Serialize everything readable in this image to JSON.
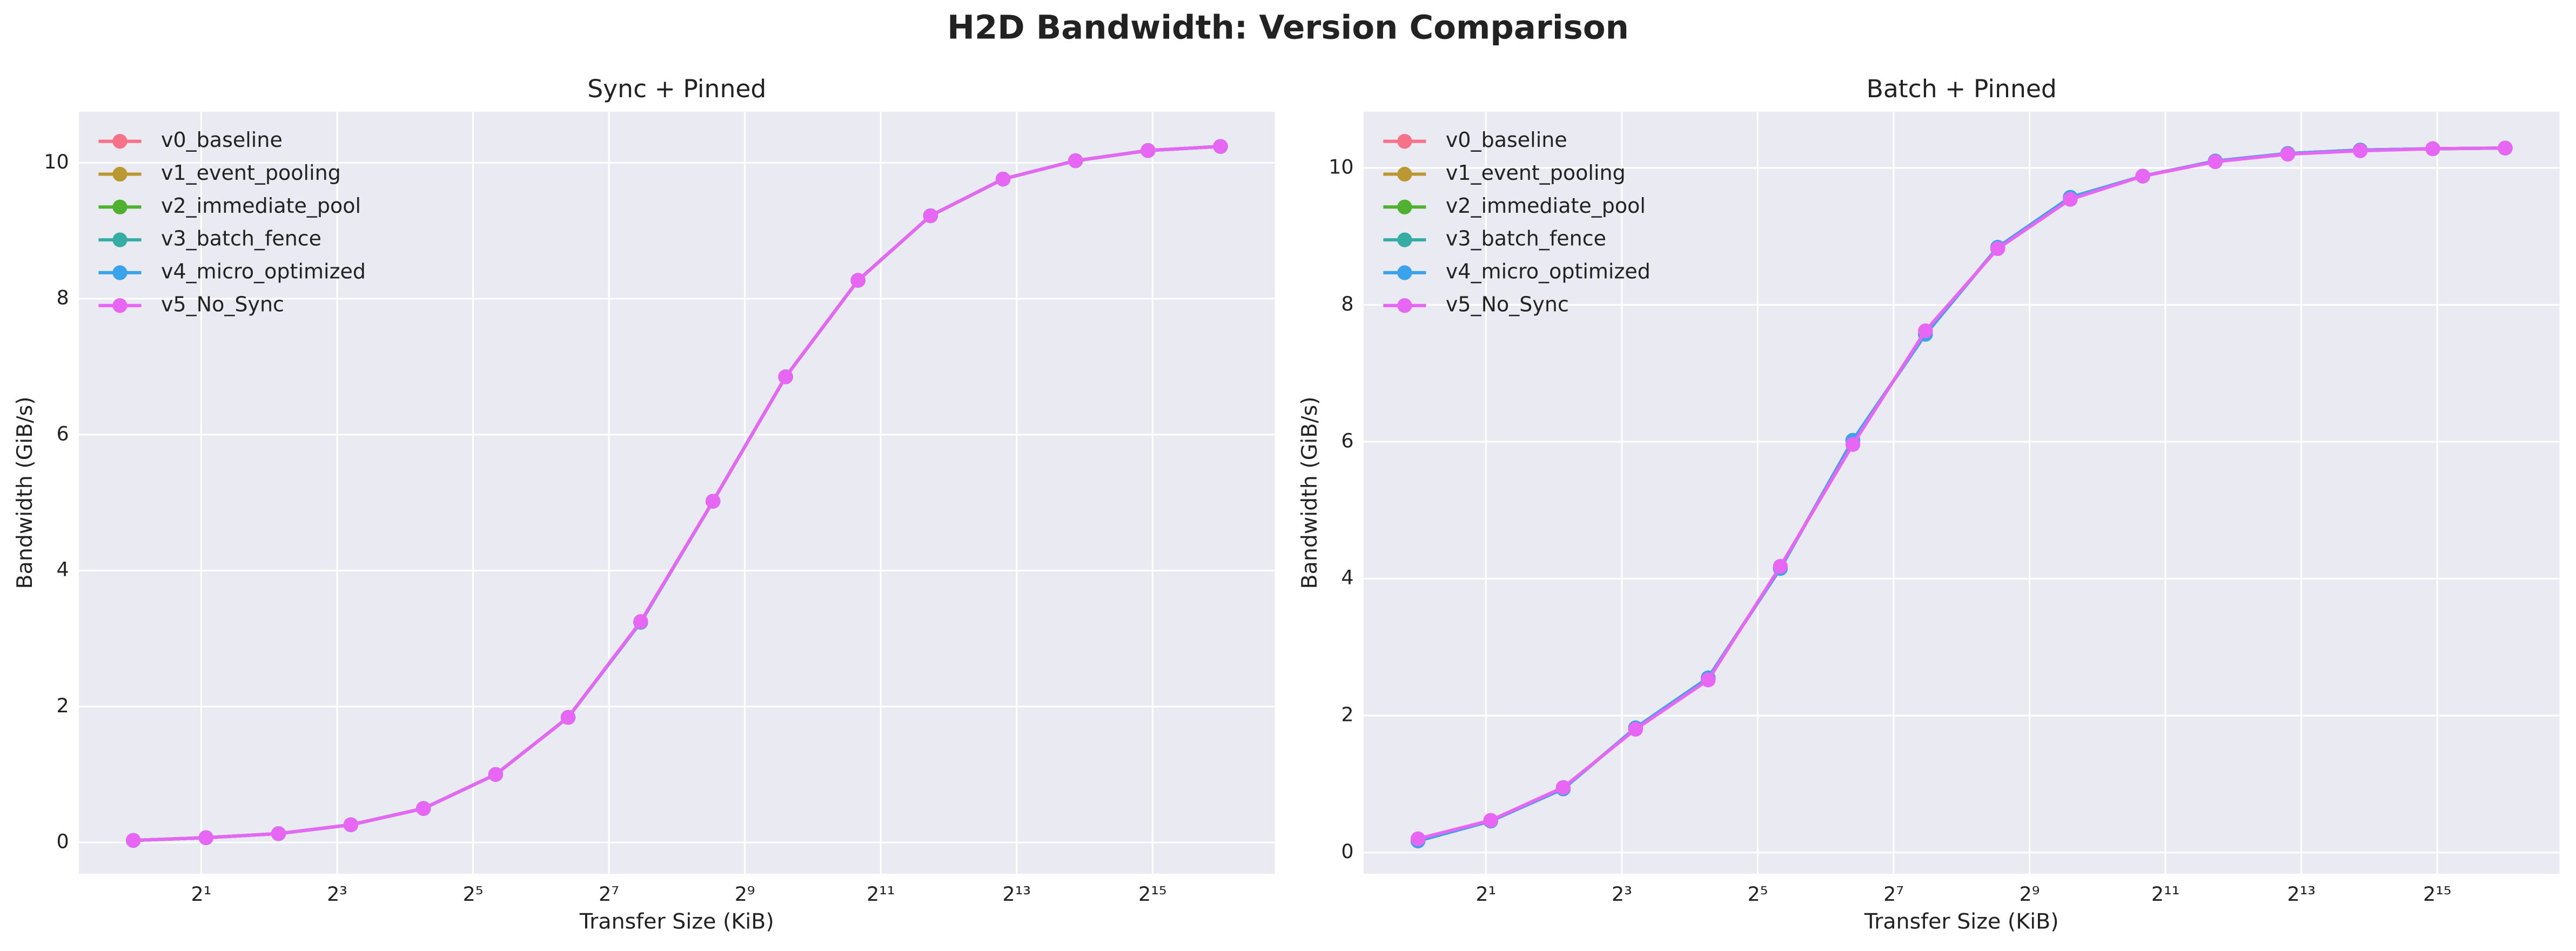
{
  "title": "H2D Bandwidth: Version Comparison",
  "chart_data": [
    {
      "type": "line",
      "title": "Sync + Pinned",
      "xlabel": "Transfer Size (KiB)",
      "ylabel": "Bandwidth (GiB/s)",
      "xscale": "log2",
      "grid": true,
      "legend": "upper left",
      "x": [
        1,
        2.1,
        4.4,
        9.2,
        19.3,
        40.3,
        84.4,
        177,
        370,
        776,
        1625,
        3404,
        7131,
        14938,
        31293,
        65536
      ],
      "xlim": [
        0.574,
        114104
      ],
      "xticks": [
        {
          "value": 2,
          "label": "2¹"
        },
        {
          "value": 8,
          "label": "2³"
        },
        {
          "value": 32,
          "label": "2⁵"
        },
        {
          "value": 128,
          "label": "2⁷"
        },
        {
          "value": 512,
          "label": "2⁹"
        },
        {
          "value": 2048,
          "label": "2¹¹"
        },
        {
          "value": 8192,
          "label": "2¹³"
        },
        {
          "value": 32768,
          "label": "2¹⁵"
        }
      ],
      "ylim": [
        -0.46,
        10.75
      ],
      "yticks": [
        0,
        2,
        4,
        6,
        8,
        10
      ],
      "series": [
        {
          "name": "v0_baseline",
          "color": "#f77189",
          "values": [
            0.03,
            0.07,
            0.13,
            0.26,
            0.5,
            1.0,
            1.84,
            3.24,
            5.02,
            6.85,
            8.27,
            9.22,
            9.76,
            10.03,
            10.18,
            10.24
          ]
        },
        {
          "name": "v1_event_pooling",
          "color": "#bb9832",
          "values": [
            0.03,
            0.07,
            0.13,
            0.26,
            0.5,
            1.0,
            1.84,
            3.24,
            5.02,
            6.85,
            8.27,
            9.22,
            9.76,
            10.03,
            10.18,
            10.24
          ]
        },
        {
          "name": "v2_immediate_pool",
          "color": "#50b131",
          "values": [
            0.03,
            0.07,
            0.13,
            0.26,
            0.5,
            1.0,
            1.84,
            3.24,
            5.02,
            6.85,
            8.27,
            9.22,
            9.76,
            10.03,
            10.18,
            10.24
          ]
        },
        {
          "name": "v3_batch_fence",
          "color": "#36ada4",
          "values": [
            0.03,
            0.07,
            0.13,
            0.26,
            0.5,
            1.0,
            1.84,
            3.24,
            5.02,
            6.85,
            8.27,
            9.22,
            9.76,
            10.03,
            10.18,
            10.24
          ]
        },
        {
          "name": "v4_micro_optimized",
          "color": "#3ba3ec",
          "values": [
            0.03,
            0.07,
            0.13,
            0.26,
            0.5,
            1.0,
            1.84,
            3.24,
            5.02,
            6.85,
            8.27,
            9.22,
            9.76,
            10.03,
            10.18,
            10.24
          ]
        },
        {
          "name": "v5_No_Sync",
          "color": "#e866f4",
          "values": [
            0.03,
            0.07,
            0.13,
            0.26,
            0.5,
            1.0,
            1.84,
            3.25,
            5.02,
            6.85,
            8.27,
            9.22,
            9.76,
            10.03,
            10.18,
            10.24
          ]
        }
      ]
    },
    {
      "type": "line",
      "title": "Batch + Pinned",
      "xlabel": "Transfer Size (KiB)",
      "ylabel": "Bandwidth (GiB/s)",
      "xscale": "log2",
      "grid": true,
      "legend": "upper left",
      "x": [
        1,
        2.1,
        4.4,
        9.2,
        19.3,
        40.3,
        84.4,
        177,
        370,
        776,
        1625,
        3404,
        7131,
        14938,
        31293,
        65536
      ],
      "xlim": [
        0.574,
        114104
      ],
      "xticks": [
        {
          "value": 2,
          "label": "2¹"
        },
        {
          "value": 8,
          "label": "2³"
        },
        {
          "value": 32,
          "label": "2⁵"
        },
        {
          "value": 128,
          "label": "2⁷"
        },
        {
          "value": 512,
          "label": "2⁹"
        },
        {
          "value": 2048,
          "label": "2¹¹"
        },
        {
          "value": 8192,
          "label": "2¹³"
        },
        {
          "value": 32768,
          "label": "2¹⁵"
        }
      ],
      "ylim": [
        -0.31,
        10.82
      ],
      "yticks": [
        0,
        2,
        4,
        6,
        8,
        10
      ],
      "series": [
        {
          "name": "v0_baseline",
          "color": "#f77189",
          "values": [
            0.17,
            0.46,
            0.93,
            1.82,
            2.55,
            4.15,
            6.02,
            7.57,
            8.84,
            9.57,
            9.88,
            10.1,
            10.21,
            10.26,
            10.28,
            10.29
          ]
        },
        {
          "name": "v1_event_pooling",
          "color": "#bb9832",
          "values": [
            0.17,
            0.46,
            0.93,
            1.82,
            2.55,
            4.15,
            6.02,
            7.57,
            8.84,
            9.57,
            9.88,
            10.1,
            10.21,
            10.26,
            10.28,
            10.29
          ]
        },
        {
          "name": "v2_immediate_pool",
          "color": "#50b131",
          "values": [
            0.17,
            0.46,
            0.93,
            1.82,
            2.55,
            4.15,
            6.02,
            7.57,
            8.84,
            9.57,
            9.88,
            10.1,
            10.21,
            10.26,
            10.28,
            10.29
          ]
        },
        {
          "name": "v3_batch_fence",
          "color": "#36ada4",
          "values": [
            0.17,
            0.46,
            0.93,
            1.82,
            2.55,
            4.15,
            6.02,
            7.57,
            8.84,
            9.57,
            9.88,
            10.1,
            10.21,
            10.26,
            10.28,
            10.29
          ]
        },
        {
          "name": "v4_micro_optimized",
          "color": "#3ba3ec",
          "values": [
            0.17,
            0.46,
            0.93,
            1.82,
            2.55,
            4.15,
            6.02,
            7.57,
            8.84,
            9.57,
            9.88,
            10.1,
            10.21,
            10.26,
            10.28,
            10.29
          ]
        },
        {
          "name": "v5_No_Sync",
          "color": "#e866f4",
          "values": [
            0.2,
            0.47,
            0.95,
            1.8,
            2.52,
            4.18,
            5.96,
            7.62,
            8.82,
            9.54,
            9.88,
            10.09,
            10.2,
            10.25,
            10.28,
            10.29
          ]
        }
      ]
    }
  ]
}
